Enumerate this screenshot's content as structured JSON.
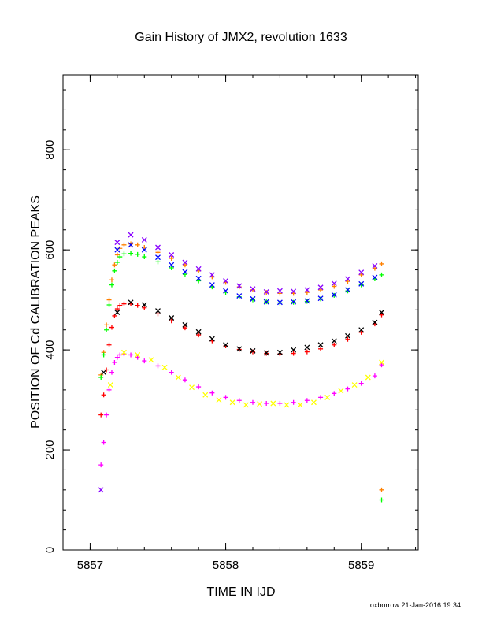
{
  "chart_data": {
    "type": "scatter",
    "title": "Gain History of JMX2, revolution 1633",
    "xlabel": "TIME IN IJD",
    "ylabel": "POSITION OF Cd CALIBRATION PEAKS",
    "footer": "oxborrow 21-Jan-2016 19:34",
    "xlim": [
      5856.8,
      5859.42
    ],
    "ylim": [
      0,
      950
    ],
    "xticks": [
      5857,
      5858,
      5859
    ],
    "yticks": [
      0,
      200,
      400,
      600,
      800
    ],
    "grid": false,
    "series": [
      {
        "color": "#FF8000",
        "marker": "+",
        "values": [
          [
            5857.08,
            350
          ],
          [
            5857.1,
            395
          ],
          [
            5857.12,
            450
          ],
          [
            5857.14,
            500
          ],
          [
            5857.16,
            540
          ],
          [
            5857.18,
            570
          ],
          [
            5857.2,
            590
          ],
          [
            5857.22,
            603
          ],
          [
            5857.25,
            610
          ],
          [
            5857.3,
            612
          ],
          [
            5857.35,
            610
          ],
          [
            5857.4,
            605
          ],
          [
            5857.5,
            595
          ],
          [
            5857.6,
            583
          ],
          [
            5857.7,
            570
          ],
          [
            5857.8,
            558
          ],
          [
            5857.9,
            546
          ],
          [
            5858.0,
            535
          ],
          [
            5858.1,
            526
          ],
          [
            5858.2,
            520
          ],
          [
            5858.3,
            515
          ],
          [
            5858.4,
            513
          ],
          [
            5858.5,
            513
          ],
          [
            5858.6,
            515
          ],
          [
            5858.7,
            520
          ],
          [
            5858.8,
            527
          ],
          [
            5858.9,
            537
          ],
          [
            5859.0,
            550
          ],
          [
            5859.1,
            563
          ],
          [
            5859.15,
            572
          ],
          [
            5859.15,
            120
          ]
        ]
      },
      {
        "color": "#00FF00",
        "marker": "+",
        "values": [
          [
            5857.08,
            345
          ],
          [
            5857.1,
            390
          ],
          [
            5857.12,
            440
          ],
          [
            5857.14,
            490
          ],
          [
            5857.16,
            530
          ],
          [
            5857.18,
            558
          ],
          [
            5857.2,
            575
          ],
          [
            5857.22,
            586
          ],
          [
            5857.25,
            592
          ],
          [
            5857.3,
            593
          ],
          [
            5857.35,
            591
          ],
          [
            5857.4,
            586
          ],
          [
            5857.5,
            576
          ],
          [
            5857.6,
            564
          ],
          [
            5857.7,
            551
          ],
          [
            5857.8,
            538
          ],
          [
            5857.9,
            526
          ],
          [
            5858.0,
            515
          ],
          [
            5858.1,
            506
          ],
          [
            5858.2,
            500
          ],
          [
            5858.3,
            496
          ],
          [
            5858.4,
            494
          ],
          [
            5858.5,
            495
          ],
          [
            5858.6,
            497
          ],
          [
            5858.7,
            502
          ],
          [
            5858.8,
            509
          ],
          [
            5858.9,
            518
          ],
          [
            5859.0,
            530
          ],
          [
            5859.1,
            542
          ],
          [
            5859.15,
            550
          ],
          [
            5859.15,
            100
          ]
        ]
      },
      {
        "color": "#FF0000",
        "marker": "+",
        "values": [
          [
            5857.08,
            270
          ],
          [
            5857.1,
            310
          ],
          [
            5857.12,
            360
          ],
          [
            5857.14,
            410
          ],
          [
            5857.16,
            445
          ],
          [
            5857.18,
            468
          ],
          [
            5857.2,
            482
          ],
          [
            5857.22,
            489
          ],
          [
            5857.25,
            492
          ],
          [
            5857.3,
            492
          ],
          [
            5857.35,
            489
          ],
          [
            5857.4,
            484
          ],
          [
            5857.5,
            472
          ],
          [
            5857.6,
            458
          ],
          [
            5857.7,
            444
          ],
          [
            5857.8,
            430
          ],
          [
            5857.9,
            418
          ],
          [
            5858.0,
            408
          ],
          [
            5858.1,
            401
          ],
          [
            5858.2,
            396
          ],
          [
            5858.3,
            393
          ],
          [
            5858.4,
            392
          ],
          [
            5858.5,
            393
          ],
          [
            5858.6,
            396
          ],
          [
            5858.7,
            402
          ],
          [
            5858.8,
            410
          ],
          [
            5858.9,
            421
          ],
          [
            5859.0,
            435
          ],
          [
            5859.1,
            452
          ],
          [
            5859.15,
            470
          ]
        ]
      },
      {
        "color": "#FF00FF",
        "marker": "+",
        "values": [
          [
            5857.08,
            170
          ],
          [
            5857.1,
            215
          ],
          [
            5857.12,
            270
          ],
          [
            5857.14,
            320
          ],
          [
            5857.16,
            355
          ],
          [
            5857.18,
            375
          ],
          [
            5857.2,
            385
          ],
          [
            5857.22,
            390
          ],
          [
            5857.25,
            392
          ],
          [
            5857.3,
            390
          ],
          [
            5857.35,
            385
          ],
          [
            5857.4,
            378
          ],
          [
            5857.5,
            368
          ],
          [
            5857.6,
            355
          ],
          [
            5857.7,
            340
          ],
          [
            5857.8,
            326
          ],
          [
            5857.9,
            314
          ],
          [
            5858.0,
            305
          ],
          [
            5858.1,
            299
          ],
          [
            5858.2,
            295
          ],
          [
            5858.3,
            293
          ],
          [
            5858.4,
            293
          ],
          [
            5858.5,
            295
          ],
          [
            5858.6,
            299
          ],
          [
            5858.7,
            305
          ],
          [
            5858.8,
            313
          ],
          [
            5858.9,
            322
          ],
          [
            5859.0,
            333
          ],
          [
            5859.1,
            348
          ],
          [
            5859.15,
            370
          ]
        ]
      },
      {
        "color": "#8800FF",
        "marker": "x",
        "values": [
          [
            5857.08,
            120
          ],
          [
            5857.2,
            615
          ],
          [
            5857.3,
            630
          ],
          [
            5857.4,
            620
          ],
          [
            5857.5,
            605
          ],
          [
            5857.6,
            590
          ],
          [
            5857.7,
            575
          ],
          [
            5857.8,
            562
          ],
          [
            5857.9,
            550
          ],
          [
            5858.0,
            538
          ],
          [
            5858.1,
            528
          ],
          [
            5858.2,
            522
          ],
          [
            5858.3,
            516
          ],
          [
            5858.4,
            518
          ],
          [
            5858.5,
            517
          ],
          [
            5858.6,
            520
          ],
          [
            5858.7,
            525
          ],
          [
            5858.8,
            533
          ],
          [
            5858.9,
            542
          ],
          [
            5859.0,
            555
          ],
          [
            5859.1,
            568
          ]
        ]
      },
      {
        "color": "#0000FF",
        "marker": "x",
        "values": [
          [
            5857.2,
            600
          ],
          [
            5857.3,
            610
          ],
          [
            5857.4,
            600
          ],
          [
            5857.5,
            585
          ],
          [
            5857.6,
            570
          ],
          [
            5857.7,
            556
          ],
          [
            5857.8,
            543
          ],
          [
            5857.9,
            530
          ],
          [
            5858.0,
            518
          ],
          [
            5858.1,
            508
          ],
          [
            5858.2,
            502
          ],
          [
            5858.3,
            496
          ],
          [
            5858.4,
            495
          ],
          [
            5858.5,
            496
          ],
          [
            5858.6,
            498
          ],
          [
            5858.7,
            503
          ],
          [
            5858.8,
            510
          ],
          [
            5858.9,
            520
          ],
          [
            5859.0,
            532
          ],
          [
            5859.1,
            545
          ]
        ]
      },
      {
        "color": "#000000",
        "marker": "x",
        "values": [
          [
            5857.1,
            355
          ],
          [
            5857.2,
            475
          ],
          [
            5857.3,
            495
          ],
          [
            5857.4,
            490
          ],
          [
            5857.5,
            478
          ],
          [
            5857.6,
            464
          ],
          [
            5857.7,
            450
          ],
          [
            5857.8,
            436
          ],
          [
            5857.9,
            422
          ],
          [
            5858.0,
            410
          ],
          [
            5858.1,
            402
          ],
          [
            5858.2,
            398
          ],
          [
            5858.3,
            394
          ],
          [
            5858.4,
            395
          ],
          [
            5858.5,
            400
          ],
          [
            5858.6,
            405
          ],
          [
            5858.7,
            410
          ],
          [
            5858.8,
            418
          ],
          [
            5858.9,
            428
          ],
          [
            5859.0,
            440
          ],
          [
            5859.1,
            455
          ],
          [
            5859.15,
            475
          ]
        ]
      },
      {
        "color": "#FFFF00",
        "marker": "x",
        "values": [
          [
            5857.15,
            330
          ],
          [
            5857.25,
            395
          ],
          [
            5857.35,
            390
          ],
          [
            5857.45,
            380
          ],
          [
            5857.55,
            365
          ],
          [
            5857.65,
            345
          ],
          [
            5857.75,
            325
          ],
          [
            5857.85,
            310
          ],
          [
            5857.95,
            300
          ],
          [
            5858.05,
            295
          ],
          [
            5858.15,
            290
          ],
          [
            5858.25,
            292
          ],
          [
            5858.35,
            293
          ],
          [
            5858.45,
            290
          ],
          [
            5858.55,
            290
          ],
          [
            5858.65,
            295
          ],
          [
            5858.75,
            305
          ],
          [
            5858.85,
            318
          ],
          [
            5858.95,
            330
          ],
          [
            5859.05,
            345
          ],
          [
            5859.15,
            375
          ]
        ]
      }
    ]
  }
}
